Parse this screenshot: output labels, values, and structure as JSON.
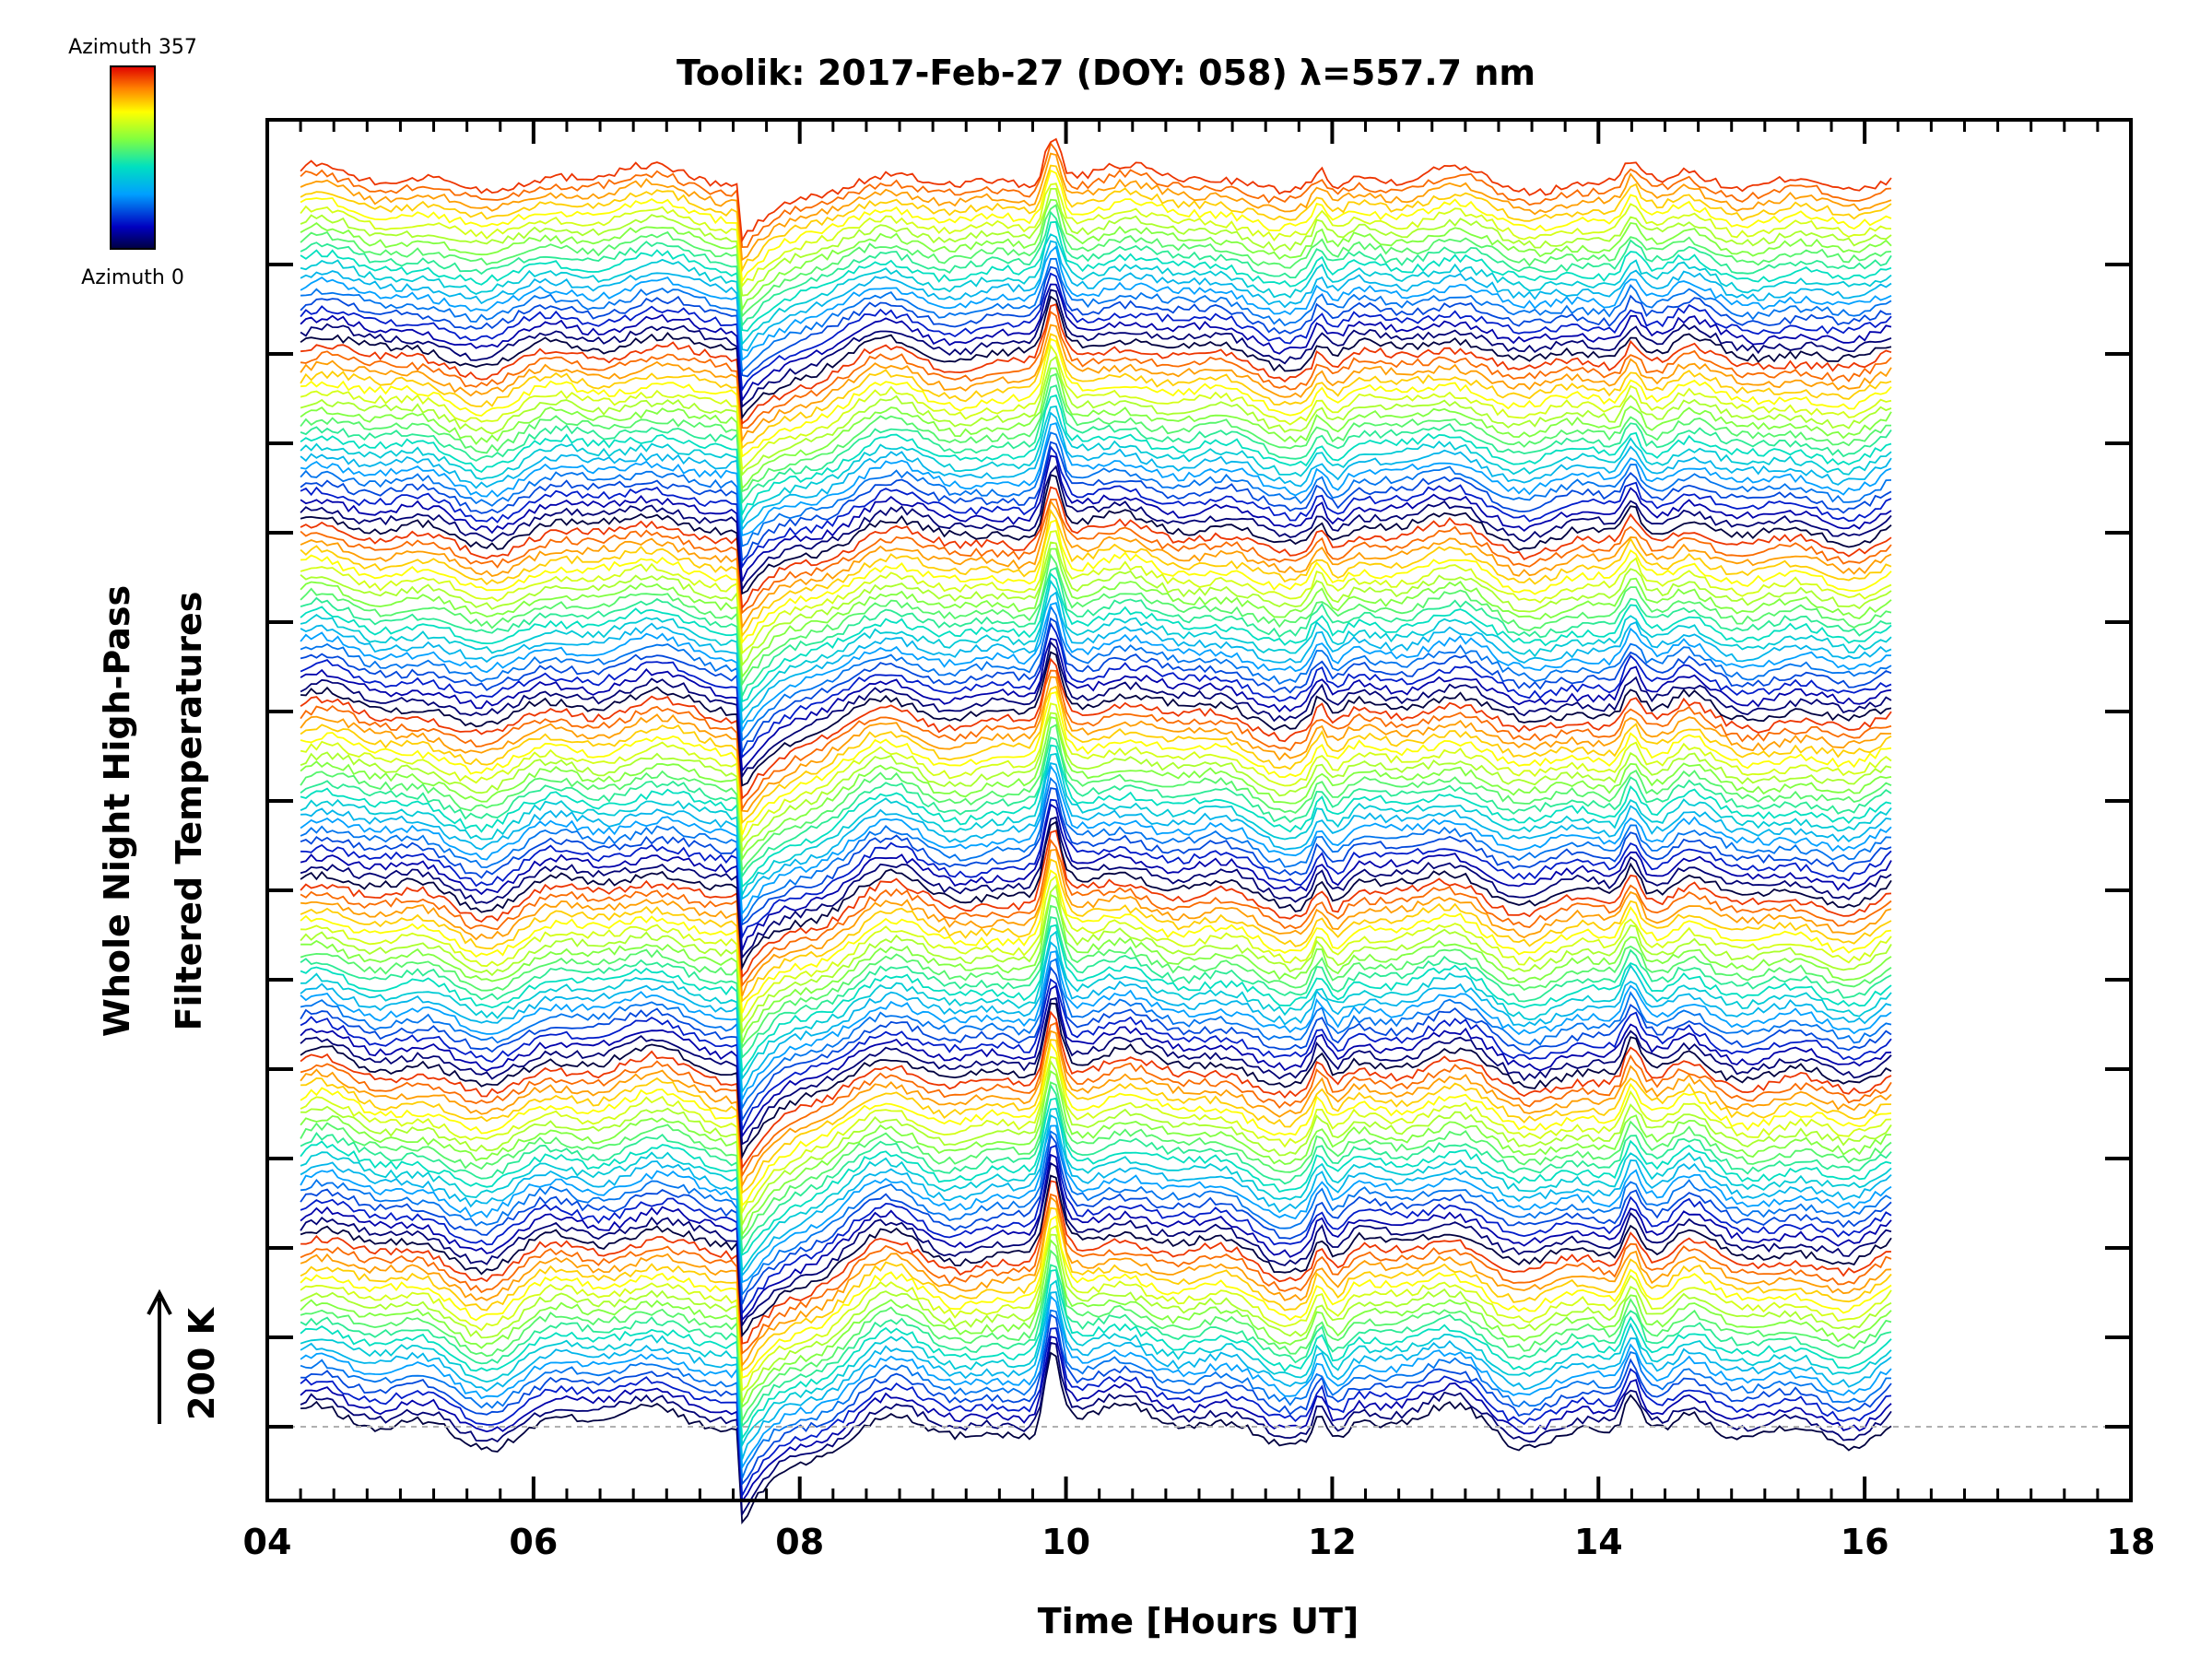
{
  "chart_data": {
    "type": "line",
    "title": "Toolik: 2017-Feb-27 (DOY: 058) λ=557.7 nm",
    "xlabel": "Time [Hours UT]",
    "ylabel_line1": "Whole Night High-Pass",
    "ylabel_line2": "Filtered Temperatures",
    "xlim": [
      4,
      18
    ],
    "xticks": [
      4,
      6,
      8,
      10,
      12,
      14,
      16,
      18
    ],
    "xtick_labels": [
      "04",
      "06",
      "08",
      "10",
      "12",
      "14",
      "16",
      "18"
    ],
    "x_start": 4.25,
    "x_end": 16.2,
    "scale_label": "200 K",
    "scale_value_K": 200,
    "n_series": 140,
    "azimuth_min": 0,
    "azimuth_max": 357,
    "azimuth_cycles": 7,
    "colorbar_top_label": "Azimuth 357",
    "colorbar_bottom_label": "Azimuth 0",
    "features": [
      {
        "name": "step-drop",
        "x": 7.55,
        "x_end": 7.85,
        "amplitude_K": -180
      },
      {
        "name": "peak",
        "x": 9.9,
        "amplitude_K": 160
      },
      {
        "name": "peak",
        "x": 14.25,
        "amplitude_K": 70
      },
      {
        "name": "peak",
        "x": 11.9,
        "amplitude_K": 45
      }
    ],
    "baseline_dashed": true,
    "colors": {
      "axis": "#000000",
      "baseline": "#b0b0b0"
    }
  }
}
